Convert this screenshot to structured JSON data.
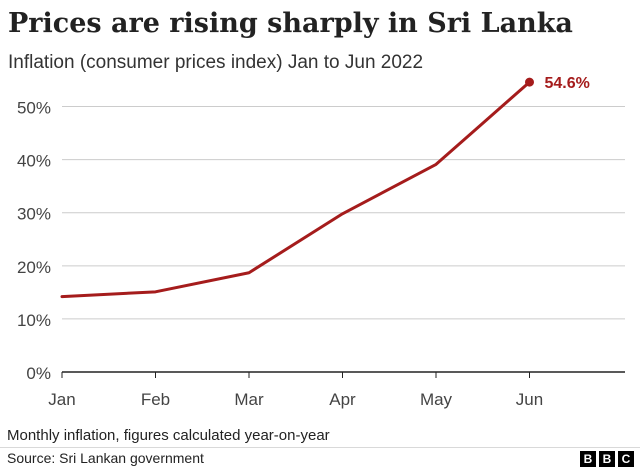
{
  "title": "Prices are rising sharply in Sri Lanka",
  "subtitle": "Inflation (consumer prices index) Jan to Jun 2022",
  "footnote": "Monthly inflation, figures calculated year-on-year",
  "source": "Source: Sri Lankan government",
  "logo": {
    "letters": [
      "B",
      "B",
      "C"
    ]
  },
  "colors": {
    "line": "#a51c1c",
    "grid": "#cccccc",
    "axis": "#222222",
    "tick_text": "#444444"
  },
  "chart_data": {
    "type": "line",
    "title": "Prices are rising sharply in Sri Lanka",
    "subtitle": "Inflation (consumer prices index) Jan to Jun 2022",
    "xlabel": "",
    "ylabel": "",
    "categories": [
      "Jan",
      "Feb",
      "Mar",
      "Apr",
      "May",
      "Jun"
    ],
    "series": [
      {
        "name": "Inflation",
        "values": [
          14.2,
          15.1,
          18.7,
          29.8,
          39.1,
          54.6
        ]
      }
    ],
    "ylim": [
      0,
      55
    ],
    "yticks": [
      0,
      10,
      20,
      30,
      40,
      50
    ],
    "ytick_labels": [
      "0%",
      "10%",
      "20%",
      "30%",
      "40%",
      "50%"
    ],
    "grid": true,
    "annotation": {
      "label": "54.6%",
      "category": "Jun"
    }
  }
}
